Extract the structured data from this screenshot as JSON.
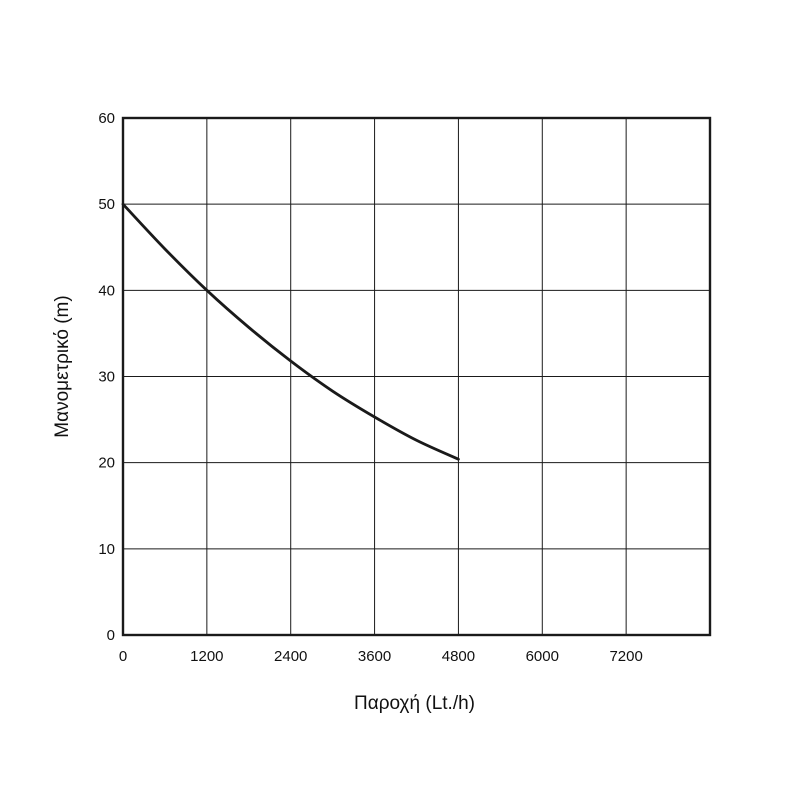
{
  "chart_data": {
    "type": "line",
    "title": "",
    "xlabel": "Παροχή (Lt./h)",
    "ylabel": "Μανομετρικό  (m)",
    "xlim": [
      0,
      8400
    ],
    "ylim": [
      0,
      60
    ],
    "x_ticks": [
      0,
      1200,
      2400,
      3600,
      4800,
      6000,
      7200
    ],
    "y_ticks": [
      0,
      10,
      20,
      30,
      40,
      50,
      60
    ],
    "grid": true,
    "legend": "none",
    "series": [
      {
        "color": "#1a1a1a",
        "x": [
          0,
          600,
          1200,
          1800,
          2400,
          3000,
          3600,
          4200,
          4800
        ],
        "y": [
          50,
          44.8,
          40,
          35.7,
          31.8,
          28.3,
          25.3,
          22.6,
          20.4
        ]
      }
    ]
  }
}
